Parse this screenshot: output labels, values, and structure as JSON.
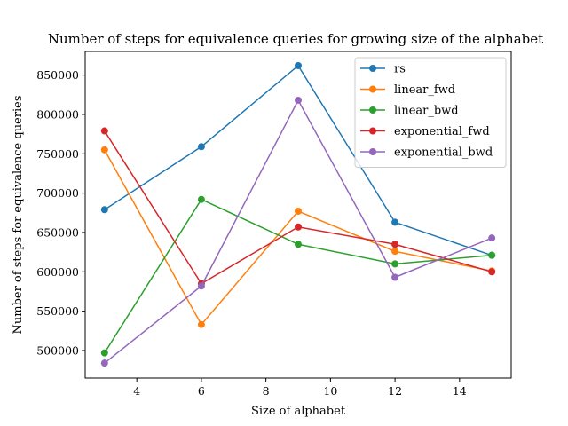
{
  "chart_data": {
    "type": "line",
    "title": "Number of steps for equivalence queries for growing size of the alphabet",
    "xlabel": "Size of alphabet",
    "ylabel": "Number of steps for equivalence queries",
    "x": [
      3,
      6,
      9,
      12,
      15
    ],
    "xlim": [
      2.4,
      15.6
    ],
    "ylim": [
      465000,
      880000
    ],
    "xticks": [
      4,
      6,
      8,
      10,
      12,
      14
    ],
    "yticks": [
      500000,
      550000,
      600000,
      650000,
      700000,
      750000,
      800000,
      850000
    ],
    "grid": false,
    "legend_position": "top-right",
    "series": [
      {
        "name": "rs",
        "color": "#1f77b4",
        "values": [
          679000,
          759000,
          862000,
          663000,
          621000
        ]
      },
      {
        "name": "linear_fwd",
        "color": "#ff7f0e",
        "values": [
          755000,
          533000,
          677000,
          626000,
          601000
        ]
      },
      {
        "name": "linear_bwd",
        "color": "#2ca02c",
        "values": [
          497000,
          692000,
          635000,
          610000,
          621000
        ]
      },
      {
        "name": "exponential_fwd",
        "color": "#d62728",
        "values": [
          779000,
          585000,
          657000,
          635000,
          600000
        ]
      },
      {
        "name": "exponential_bwd",
        "color": "#9467bd",
        "values": [
          484000,
          582000,
          818000,
          593000,
          643000
        ]
      }
    ]
  }
}
